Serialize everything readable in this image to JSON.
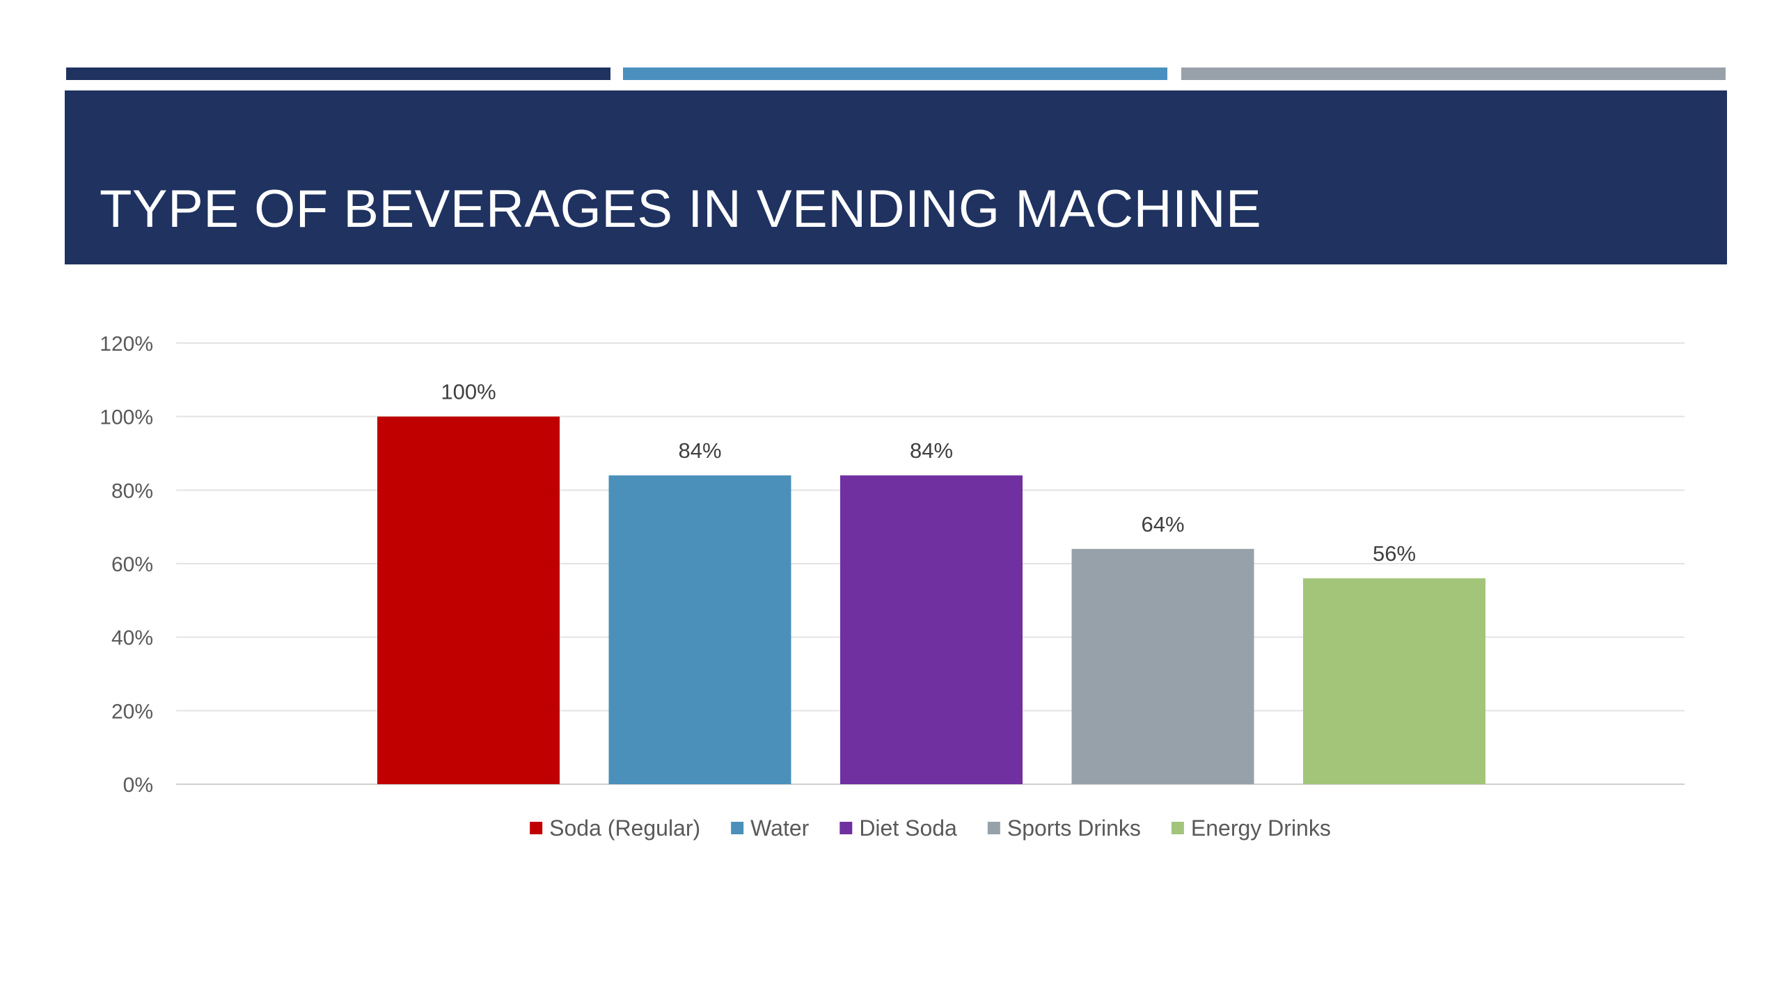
{
  "slide": {
    "title": "TYPE OF BEVERAGES IN VENDING MACHINE",
    "colors": {
      "title_band": "#1f3260",
      "accent_bars": [
        "#1f3260",
        "#4a90bf",
        "#98a1aa"
      ]
    }
  },
  "chart_data": {
    "type": "bar",
    "title": "",
    "xlabel": "",
    "ylabel": "",
    "ylim": [
      0,
      120
    ],
    "y_ticks": [
      "0%",
      "20%",
      "40%",
      "60%",
      "80%",
      "100%",
      "120%"
    ],
    "grid": true,
    "legend_position": "bottom",
    "series": [
      {
        "name": "Soda (Regular)",
        "value": 100,
        "label": "100%",
        "color": "#c00000"
      },
      {
        "name": "Water",
        "value": 84,
        "label": "84%",
        "color": "#4a90bb"
      },
      {
        "name": "Diet Soda",
        "value": 84,
        "label": "84%",
        "color": "#7030a0"
      },
      {
        "name": "Sports Drinks",
        "value": 64,
        "label": "64%",
        "color": "#97a1a9"
      },
      {
        "name": "Energy Drinks",
        "value": 56,
        "label": "56%",
        "color": "#a2c579"
      }
    ]
  }
}
